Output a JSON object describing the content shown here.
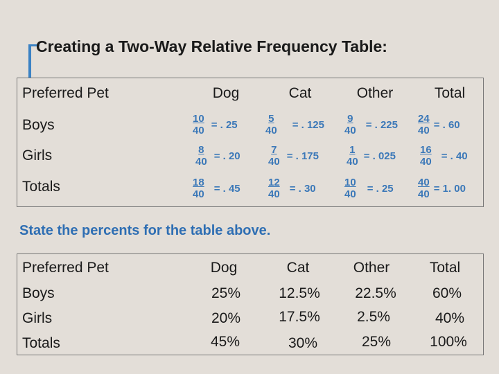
{
  "title": "Creating a Two-Way Relative Frequency Table:",
  "table1": {
    "headers": [
      "Preferred Pet",
      "Dog",
      "Cat",
      "Other",
      "Total"
    ],
    "rows": [
      {
        "label": "Boys",
        "cells": [
          {
            "num": "10",
            "den": "40",
            "value": ". 25"
          },
          {
            "num": "5",
            "den": "40",
            "value": ". 125"
          },
          {
            "num": "9",
            "den": "40",
            "value": ". 225"
          },
          {
            "num": "24",
            "den": "40",
            "value": ". 60"
          }
        ]
      },
      {
        "label": "Girls",
        "cells": [
          {
            "num": "8",
            "den": "40",
            "value": ". 20"
          },
          {
            "num": "7",
            "den": "40",
            "value": ". 175"
          },
          {
            "num": "1",
            "den": "40",
            "value": ". 025"
          },
          {
            "num": "16",
            "den": "40",
            "value": ". 40"
          }
        ]
      },
      {
        "label": "Totals",
        "cells": [
          {
            "num": "18",
            "den": "40",
            "value": ". 45"
          },
          {
            "num": "12",
            "den": "40",
            "value": ". 30"
          },
          {
            "num": "10",
            "den": "40",
            "value": ". 25"
          },
          {
            "num": "40",
            "den": "40",
            "value": "1. 00"
          }
        ]
      }
    ]
  },
  "prompt": "State the percents for the table above.",
  "table2": {
    "headers": [
      "Preferred Pet",
      "Dog",
      "Cat",
      "Other",
      "Total"
    ],
    "rows": [
      {
        "label": "Boys",
        "cells": [
          "25%",
          "12.5%",
          "22.5%",
          "60%"
        ]
      },
      {
        "label": "Girls",
        "cells": [
          "20%",
          "17.5%",
          "2.5%",
          "40%"
        ]
      },
      {
        "label": "Totals",
        "cells": [
          "45%",
          "30%",
          "25%",
          "100%"
        ]
      }
    ]
  },
  "colors": {
    "background": "#e3ded8",
    "accent": "#3b82c4",
    "fraction": "#3b78b8",
    "prompt": "#2e6eb3"
  }
}
